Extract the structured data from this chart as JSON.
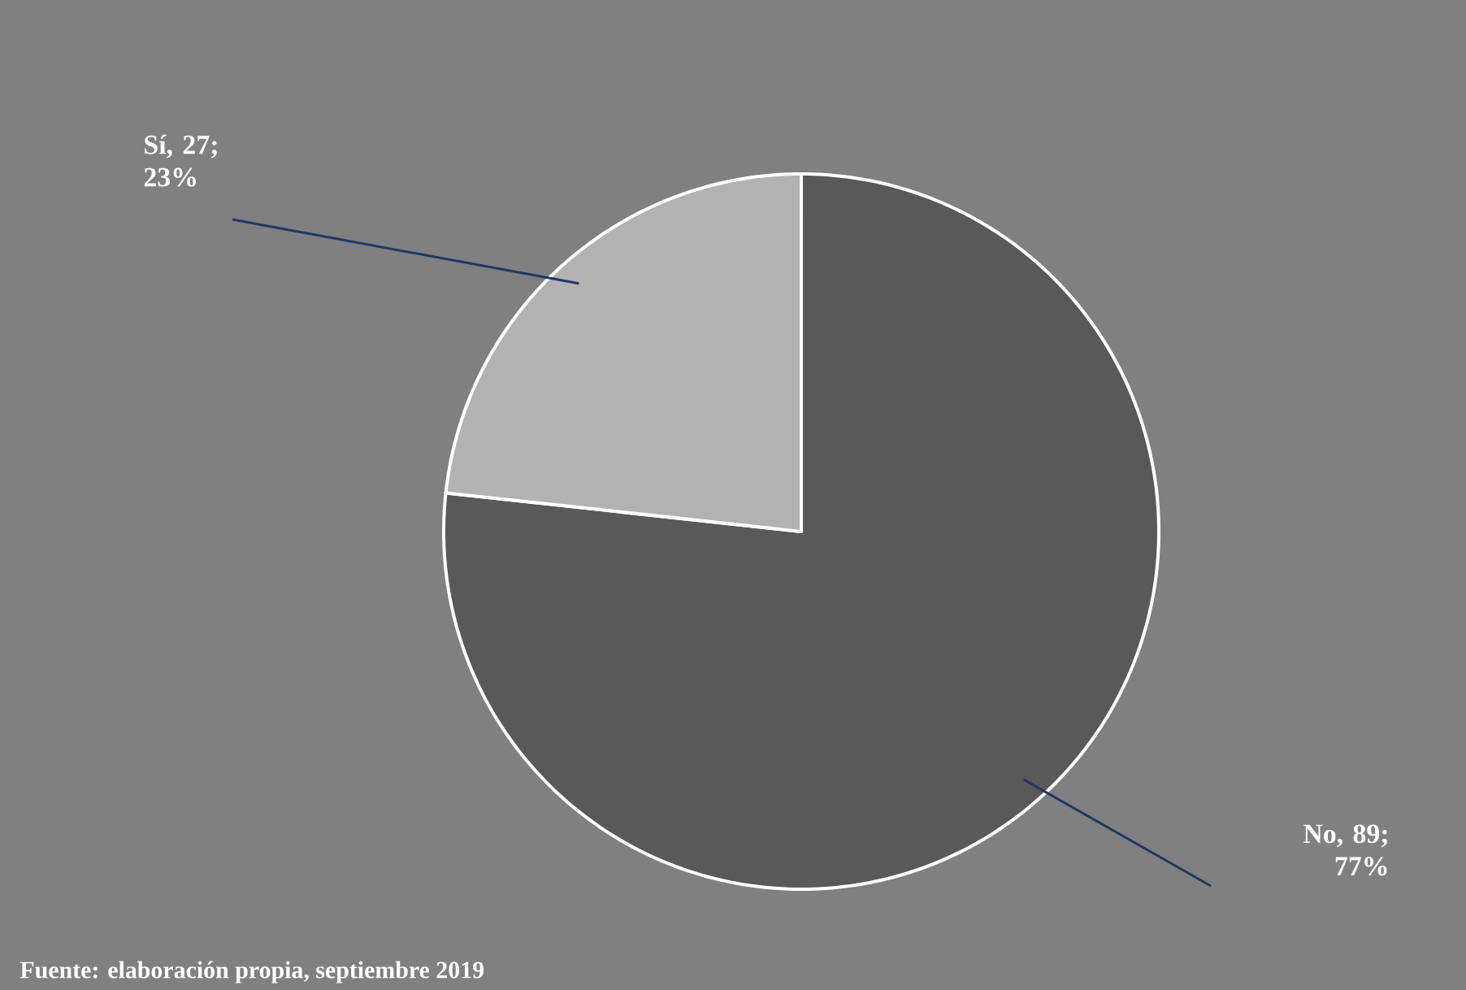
{
  "chart_data": {
    "type": "pie",
    "categories": [
      "No",
      "Sí"
    ],
    "values": [
      89,
      27
    ],
    "value_labels": [
      ", 89; 77%",
      ", 27; 23%"
    ],
    "colors": [
      "#595959",
      "#b2b2b2"
    ],
    "annotations": [
      "Fuente: elaboración propia, septiembre 2019"
    ]
  }
}
